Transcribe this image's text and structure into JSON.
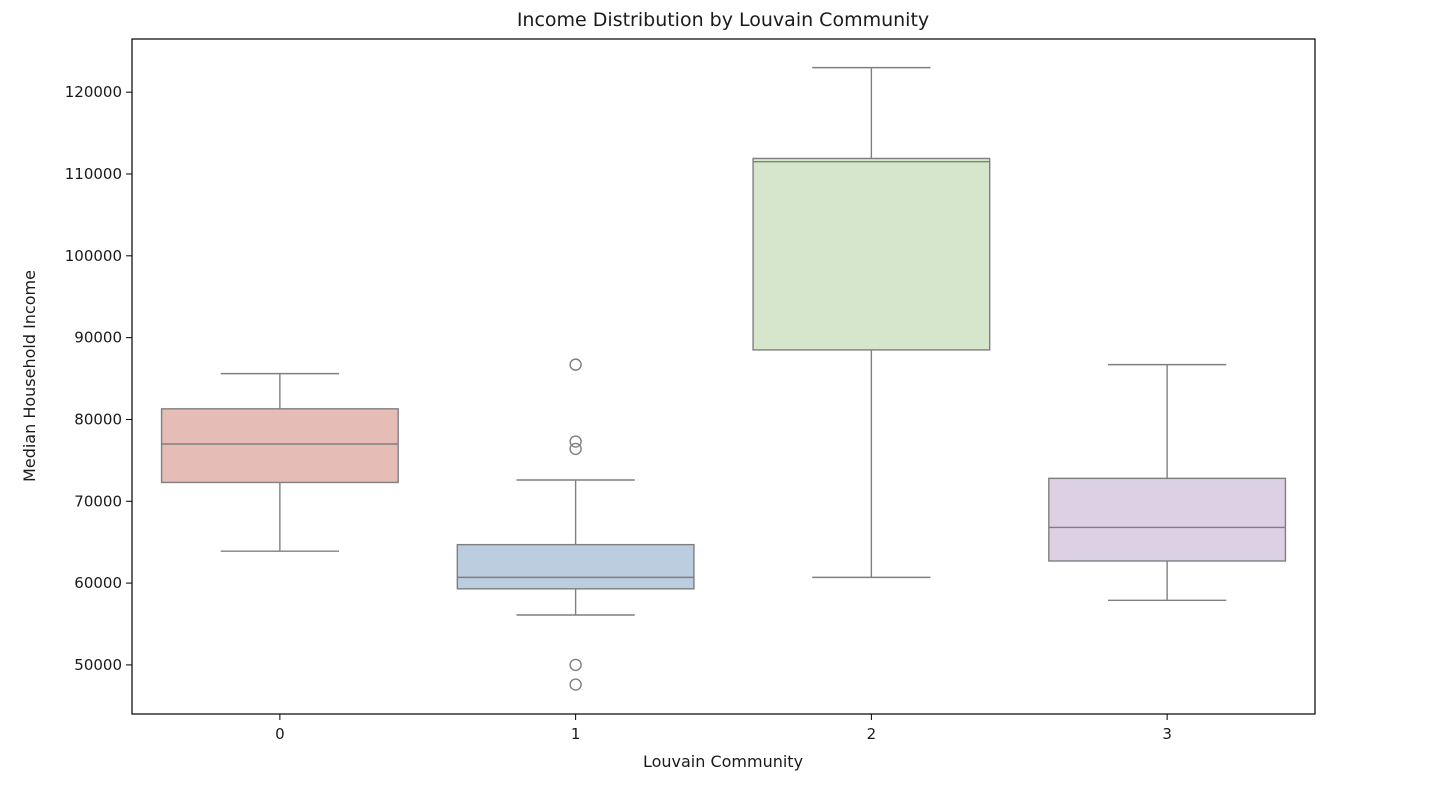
{
  "chart_data": {
    "type": "box",
    "title": "Income Distribution by Louvain Community",
    "xlabel": "Louvain Community",
    "ylabel": "Median Household Income",
    "categories": [
      "0",
      "1",
      "2",
      "3"
    ],
    "ylim": [
      44000,
      126500
    ],
    "yticks": [
      50000,
      60000,
      70000,
      80000,
      90000,
      100000,
      110000,
      120000
    ],
    "grid": false,
    "boxes": [
      {
        "category": "0",
        "whisker_low": 63900,
        "q1": 72300,
        "median": 77000,
        "q3": 81300,
        "whisker_high": 85600,
        "outliers": [],
        "color": "#e5bcb6"
      },
      {
        "category": "1",
        "whisker_low": 56100,
        "q1": 59300,
        "median": 60700,
        "q3": 64700,
        "whisker_high": 72600,
        "outliers": [
          86700,
          77300,
          76400,
          50000,
          47600
        ],
        "color": "#bdcde0"
      },
      {
        "category": "2",
        "whisker_low": 60700,
        "q1": 88500,
        "median": 111500,
        "q3": 111900,
        "whisker_high": 123000,
        "outliers": [],
        "color": "#d5e6cc"
      },
      {
        "category": "3",
        "whisker_low": 57900,
        "q1": 62700,
        "median": 66800,
        "q3": 72800,
        "whisker_high": 86700,
        "outliers": [],
        "color": "#dbd0e4"
      }
    ],
    "line_color": "#7f7f7f"
  }
}
